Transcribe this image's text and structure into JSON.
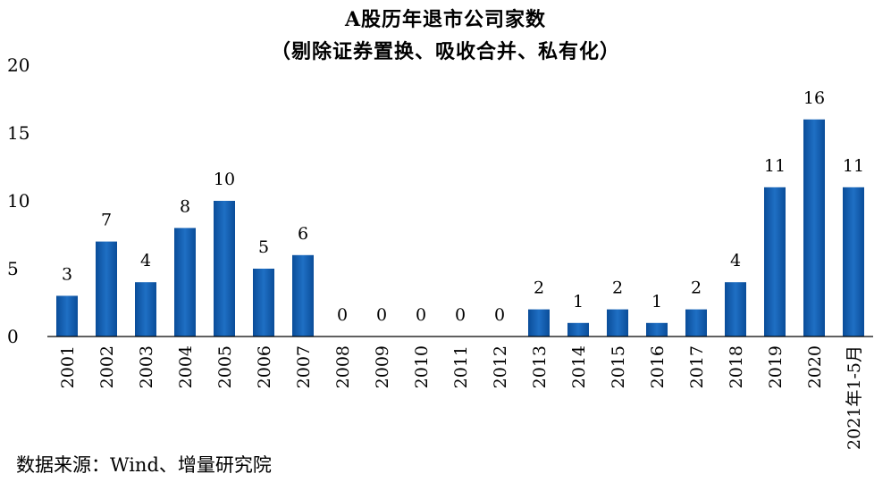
{
  "chart_data": {
    "type": "bar",
    "title": "A股历年退市公司家数",
    "subtitle": "（剔除证券置换、吸收合并、私有化）",
    "categories": [
      "2001",
      "2002",
      "2003",
      "2004",
      "2005",
      "2006",
      "2007",
      "2008",
      "2009",
      "2010",
      "2011",
      "2012",
      "2013",
      "2014",
      "2015",
      "2016",
      "2017",
      "2018",
      "2019",
      "2020",
      "2021年1-5月"
    ],
    "values": [
      3,
      7,
      4,
      8,
      10,
      5,
      6,
      0,
      0,
      0,
      0,
      0,
      2,
      1,
      2,
      1,
      2,
      4,
      11,
      16,
      11
    ],
    "yticks": [
      "0",
      "5",
      "10",
      "15",
      "20"
    ],
    "ylim": [
      0,
      20
    ],
    "grid": false,
    "bar_color": "#1f6fc4",
    "bar_color_dark": "#0a4d99"
  },
  "source": "数据来源：Wind、增量研究院"
}
